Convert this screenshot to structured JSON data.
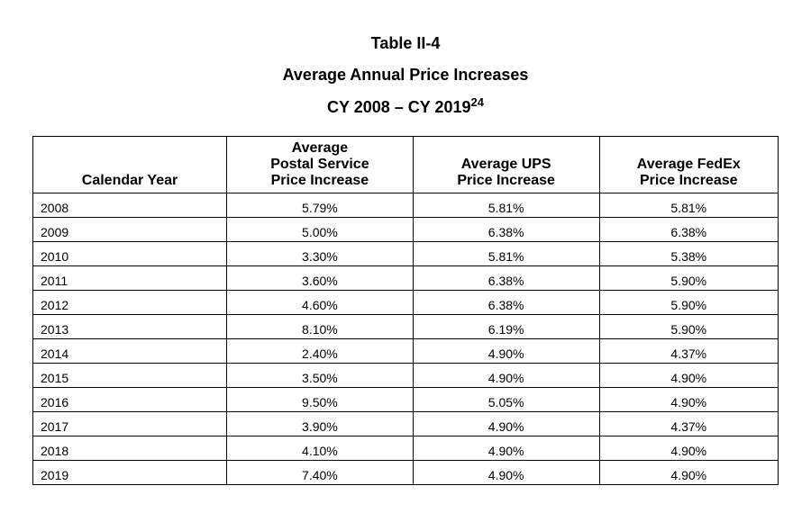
{
  "title": {
    "line1": "Table II-4",
    "line2": "Average Annual Price Increases",
    "line3_prefix": "CY 2008 – CY 2019",
    "line3_footnote": "24",
    "font_size_pt": 18,
    "font_weight": "bold",
    "color": "#000000"
  },
  "table": {
    "type": "table",
    "border_color": "#000000",
    "background_color": "#ffffff",
    "header_font_weight": "bold",
    "body_font_size_pt": 14,
    "columns": [
      {
        "key": "year",
        "label": "Calendar Year",
        "align_body": "left",
        "align_header": "center",
        "width_pct": 26
      },
      {
        "key": "postal",
        "label": "Average\nPostal Service\nPrice Increase",
        "align_body": "center",
        "align_header": "center",
        "width_pct": 25
      },
      {
        "key": "ups",
        "label": "Average UPS\nPrice Increase",
        "align_body": "center",
        "align_header": "center",
        "width_pct": 25
      },
      {
        "key": "fedex",
        "label": "Average FedEx\nPrice Increase",
        "align_body": "center",
        "align_header": "center",
        "width_pct": 24
      }
    ],
    "rows": [
      {
        "year": "2008",
        "postal": "5.79%",
        "ups": "5.81%",
        "fedex": "5.81%"
      },
      {
        "year": "2009",
        "postal": "5.00%",
        "ups": "6.38%",
        "fedex": "6.38%"
      },
      {
        "year": "2010",
        "postal": "3.30%",
        "ups": "5.81%",
        "fedex": "5.38%"
      },
      {
        "year": "2011",
        "postal": "3.60%",
        "ups": "6.38%",
        "fedex": "5.90%"
      },
      {
        "year": "2012",
        "postal": "4.60%",
        "ups": "6.38%",
        "fedex": "5.90%"
      },
      {
        "year": "2013",
        "postal": "8.10%",
        "ups": "6.19%",
        "fedex": "5.90%"
      },
      {
        "year": "2014",
        "postal": "2.40%",
        "ups": "4.90%",
        "fedex": "4.37%"
      },
      {
        "year": "2015",
        "postal": "3.50%",
        "ups": "4.90%",
        "fedex": "4.90%"
      },
      {
        "year": "2016",
        "postal": "9.50%",
        "ups": "5.05%",
        "fedex": "4.90%"
      },
      {
        "year": "2017",
        "postal": "3.90%",
        "ups": "4.90%",
        "fedex": "4.37%"
      },
      {
        "year": "2018",
        "postal": "4.10%",
        "ups": "4.90%",
        "fedex": "4.90%"
      },
      {
        "year": "2019",
        "postal": "7.40%",
        "ups": "4.90%",
        "fedex": "4.90%"
      }
    ]
  }
}
